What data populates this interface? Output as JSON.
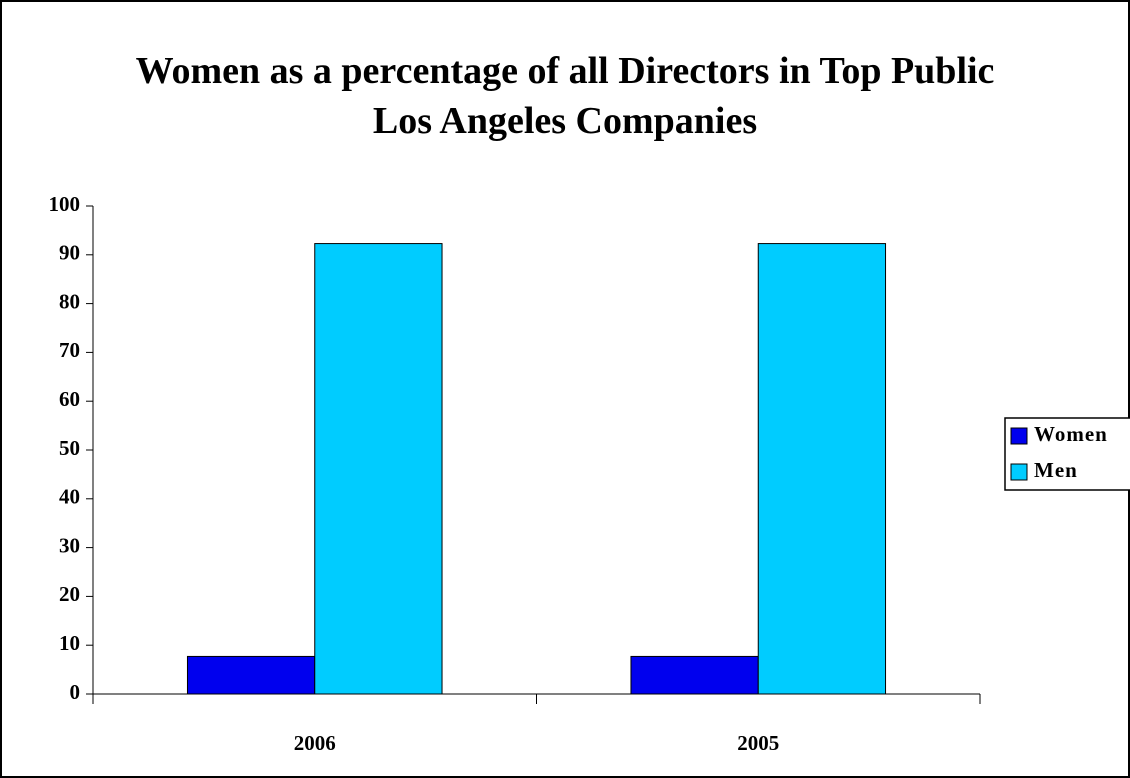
{
  "chart_data": {
    "type": "bar",
    "title": "Women as a percentage of all Directors in Top Public Los Angeles Companies",
    "categories": [
      "2006",
      "2005"
    ],
    "series": [
      {
        "name": "Women",
        "color": "#0000ee",
        "values": [
          7.7,
          7.7
        ]
      },
      {
        "name": "Men",
        "color": "#00ccff",
        "values": [
          92.3,
          92.3
        ]
      }
    ],
    "ylim": [
      0,
      100
    ],
    "yticks": [
      0,
      10,
      20,
      30,
      40,
      50,
      60,
      70,
      80,
      90,
      100
    ],
    "grid": false,
    "legend": "right"
  }
}
